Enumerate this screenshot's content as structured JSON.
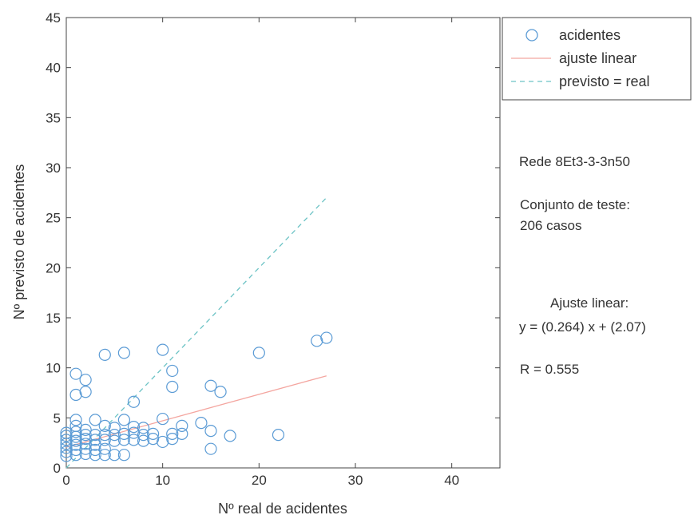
{
  "chart_data": {
    "type": "scatter",
    "xlabel": "Nº real de acidentes",
    "ylabel": "Nº previsto de acidentes",
    "xlim": [
      0,
      45
    ],
    "ylim": [
      0,
      45
    ],
    "xticks": [
      0,
      10,
      20,
      30,
      40
    ],
    "yticks": [
      0,
      5,
      10,
      15,
      20,
      25,
      30,
      35,
      40,
      45
    ],
    "grid": false,
    "legend_position": "top-right-outside",
    "series": [
      {
        "name": "acidentes",
        "kind": "markers",
        "marker": "circle",
        "color": "#5b9bd5",
        "points": [
          [
            0,
            1.2
          ],
          [
            0,
            1.6
          ],
          [
            0,
            2.0
          ],
          [
            0,
            2.4
          ],
          [
            0,
            2.8
          ],
          [
            0,
            3.2
          ],
          [
            0,
            3.5
          ],
          [
            1,
            1.3
          ],
          [
            1,
            1.8
          ],
          [
            1,
            2.3
          ],
          [
            1,
            2.7
          ],
          [
            1,
            3.1
          ],
          [
            1,
            3.6
          ],
          [
            1,
            4.2
          ],
          [
            1,
            4.8
          ],
          [
            1,
            7.3
          ],
          [
            1,
            9.4
          ],
          [
            2,
            1.4
          ],
          [
            2,
            1.9
          ],
          [
            2,
            2.4
          ],
          [
            2,
            2.9
          ],
          [
            2,
            3.3
          ],
          [
            2,
            3.8
          ],
          [
            2,
            7.6
          ],
          [
            2,
            8.8
          ],
          [
            3,
            1.3
          ],
          [
            3,
            1.8
          ],
          [
            3,
            2.3
          ],
          [
            3,
            2.8
          ],
          [
            3,
            3.3
          ],
          [
            3,
            4.8
          ],
          [
            4,
            1.3
          ],
          [
            4,
            1.9
          ],
          [
            4,
            2.8
          ],
          [
            4,
            3.3
          ],
          [
            4,
            4.2
          ],
          [
            4,
            11.3
          ],
          [
            5,
            1.3
          ],
          [
            5,
            2.7
          ],
          [
            5,
            3.3
          ],
          [
            5,
            4.0
          ],
          [
            6,
            1.3
          ],
          [
            6,
            2.8
          ],
          [
            6,
            3.4
          ],
          [
            6,
            4.8
          ],
          [
            6,
            11.5
          ],
          [
            7,
            2.8
          ],
          [
            7,
            3.5
          ],
          [
            7,
            4.1
          ],
          [
            7,
            6.6
          ],
          [
            8,
            2.7
          ],
          [
            8,
            3.3
          ],
          [
            8,
            4.0
          ],
          [
            9,
            2.9
          ],
          [
            9,
            3.4
          ],
          [
            10,
            2.6
          ],
          [
            10,
            4.9
          ],
          [
            10,
            11.8
          ],
          [
            11,
            2.9
          ],
          [
            11,
            3.4
          ],
          [
            11,
            8.1
          ],
          [
            11,
            9.7
          ],
          [
            12,
            3.4
          ],
          [
            12,
            4.2
          ],
          [
            14,
            4.5
          ],
          [
            15,
            1.9
          ],
          [
            15,
            3.7
          ],
          [
            15,
            8.2
          ],
          [
            16,
            7.6
          ],
          [
            17,
            3.2
          ],
          [
            20,
            11.5
          ],
          [
            22,
            3.3
          ],
          [
            26,
            12.7
          ],
          [
            27,
            13.0
          ]
        ]
      },
      {
        "name": "ajuste linear",
        "kind": "line",
        "color": "#f4a6a0",
        "slope": 0.264,
        "intercept": 2.07,
        "x_range": [
          0,
          27
        ]
      },
      {
        "name": "previsto = real",
        "kind": "dashed-line",
        "color": "#6cc3c5",
        "x": [
          0,
          27
        ],
        "y": [
          0,
          27
        ]
      }
    ]
  },
  "annotations": {
    "network": "Rede 8Et3-3-3n50",
    "test_set_line1": "Conjunto de teste:",
    "test_set_line2": "206 casos",
    "fit_title": "Ajuste linear:",
    "fit_equation": "y = (0.264) x + (2.07)",
    "r_value": "R = 0.555"
  }
}
